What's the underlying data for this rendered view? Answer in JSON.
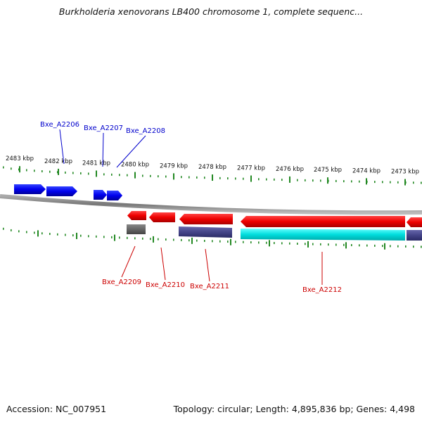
{
  "title": "Burkholderia xenovorans LB400 chromosome 1, complete sequenc...",
  "footer": {
    "accession": "Accession: NC_007951",
    "summary": "Topology: circular; Length: 4,895,836 bp; Genes: 4,498"
  },
  "colors": {
    "forward_gene": "#0000ee",
    "reverse_gene": "#ee0000",
    "forward_label": "#0000cc",
    "reverse_label": "#cc0000",
    "tick": "#228822",
    "backbone": "#888888",
    "cds_cyan": "#00dddd",
    "cds_navy": "#444488",
    "cds_gray": "#666666"
  },
  "ticks": [
    {
      "label": "2483 kbp"
    },
    {
      "label": "2482 kbp"
    },
    {
      "label": "2481 kbp"
    },
    {
      "label": "2480 kbp"
    },
    {
      "label": "2479 kbp"
    },
    {
      "label": "2478 kbp"
    },
    {
      "label": "2477 kbp"
    },
    {
      "label": "2476 kbp"
    },
    {
      "label": "2475 kbp"
    },
    {
      "label": "2474 kbp"
    },
    {
      "label": "2473 kbp"
    }
  ],
  "genes": [
    {
      "label": "Bxe_A2206",
      "strand": "forward"
    },
    {
      "label": "Bxe_A2207",
      "strand": "forward"
    },
    {
      "label": "Bxe_A2208",
      "strand": "forward"
    },
    {
      "label": "Bxe_A2209",
      "strand": "reverse"
    },
    {
      "label": "Bxe_A2210",
      "strand": "reverse"
    },
    {
      "label": "Bxe_A2211",
      "strand": "reverse"
    },
    {
      "label": "Bxe_A2212",
      "strand": "reverse"
    }
  ]
}
